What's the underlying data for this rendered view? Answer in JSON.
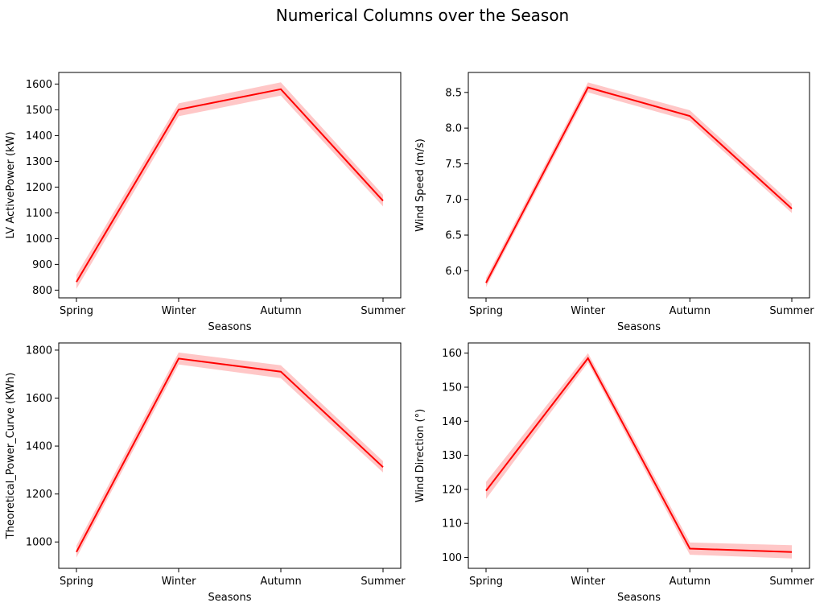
{
  "figure": {
    "title": "Numerical Columns over the Season"
  },
  "chart_data": [
    {
      "type": "line",
      "categories": [
        "Spring",
        "Winter",
        "Autumn",
        "Summer"
      ],
      "series": [
        {
          "values": [
            832,
            1501,
            1580,
            1147
          ],
          "ci_low": [
            805,
            1475,
            1555,
            1125
          ],
          "ci_high": [
            860,
            1525,
            1607,
            1170
          ],
          "color": "#ff0000"
        }
      ],
      "xlabel": "Seasons",
      "ylabel": "LV ActivePower (kW)",
      "ylim": [
        770,
        1645
      ],
      "yticks": [
        800,
        900,
        1000,
        1100,
        1200,
        1300,
        1400,
        1500,
        1600
      ],
      "grid": false
    },
    {
      "type": "line",
      "categories": [
        "Spring",
        "Winter",
        "Autumn",
        "Summer"
      ],
      "series": [
        {
          "values": [
            5.83,
            8.57,
            8.17,
            6.87
          ],
          "ci_low": [
            5.77,
            8.5,
            8.1,
            6.81
          ],
          "ci_high": [
            5.9,
            8.64,
            8.25,
            6.94
          ],
          "color": "#ff0000"
        }
      ],
      "xlabel": "Seasons",
      "ylabel": "Wind Speed (m/s)",
      "ylim": [
        5.62,
        8.78
      ],
      "yticks": [
        6.0,
        6.5,
        7.0,
        7.5,
        8.0,
        8.5
      ],
      "grid": false
    },
    {
      "type": "line",
      "categories": [
        "Spring",
        "Winter",
        "Autumn",
        "Summer"
      ],
      "series": [
        {
          "values": [
            958,
            1765,
            1710,
            1312
          ],
          "ci_low": [
            935,
            1740,
            1683,
            1290
          ],
          "ci_high": [
            985,
            1790,
            1737,
            1337
          ],
          "color": "#ff0000"
        }
      ],
      "xlabel": "Seasons",
      "ylabel": "Theoretical_Power_Curve (KWh)",
      "ylim": [
        890,
        1830
      ],
      "yticks": [
        1000,
        1200,
        1400,
        1600,
        1800
      ],
      "grid": false
    },
    {
      "type": "line",
      "categories": [
        "Spring",
        "Winter",
        "Autumn",
        "Summer"
      ],
      "series": [
        {
          "values": [
            119.6,
            158.5,
            102.6,
            101.6
          ],
          "ci_low": [
            117.2,
            157.2,
            100.8,
            99.7
          ],
          "ci_high": [
            122.2,
            160.0,
            104.4,
            103.6
          ],
          "color": "#ff0000"
        }
      ],
      "xlabel": "Seasons",
      "ylabel": "Wind Direction (°)",
      "ylim": [
        96.8,
        163.0
      ],
      "yticks": [
        100,
        110,
        120,
        130,
        140,
        150,
        160
      ],
      "grid": false
    }
  ]
}
